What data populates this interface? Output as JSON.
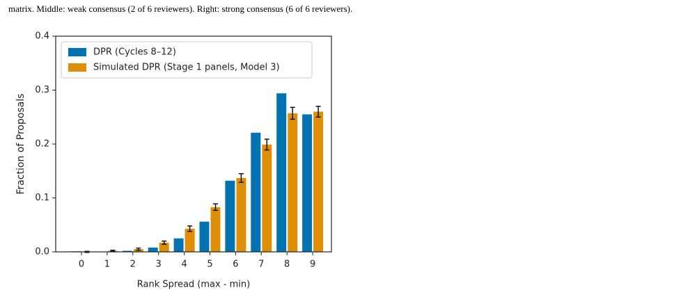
{
  "caption": "matrix. Middle: weak consensus (2 of 6 reviewers). Right: strong consensus (6 of 6 reviewers).",
  "chart_data": {
    "type": "bar",
    "x_label": "Rank Spread (max - min)",
    "y_label": "Fraction of Proposals",
    "categories": [
      "0",
      "1",
      "2",
      "3",
      "4",
      "5",
      "6",
      "7",
      "8",
      "9"
    ],
    "series": [
      {
        "name": "DPR (Cycles 8–12)",
        "color": "#0173b2",
        "values": [
          0.001,
          0.0005,
          0.002,
          0.008,
          0.025,
          0.056,
          0.132,
          0.221,
          0.294,
          0.255
        ]
      },
      {
        "name": "Simulated DPR (Stage 1 panels, Model 3)",
        "color": "#de8f05",
        "values": [
          0,
          0.002,
          0.005,
          0.017,
          0.043,
          0.083,
          0.137,
          0.199,
          0.257,
          0.26
        ],
        "errors": [
          0.001,
          0.001,
          0.002,
          0.003,
          0.005,
          0.006,
          0.008,
          0.01,
          0.011,
          0.01
        ]
      }
    ],
    "ylim": [
      0,
      0.4
    ],
    "yticks": [
      {
        "value": 0,
        "label": "0.0"
      },
      0.1,
      0.2,
      0.3,
      0.4
    ],
    "legend": "upper left"
  }
}
